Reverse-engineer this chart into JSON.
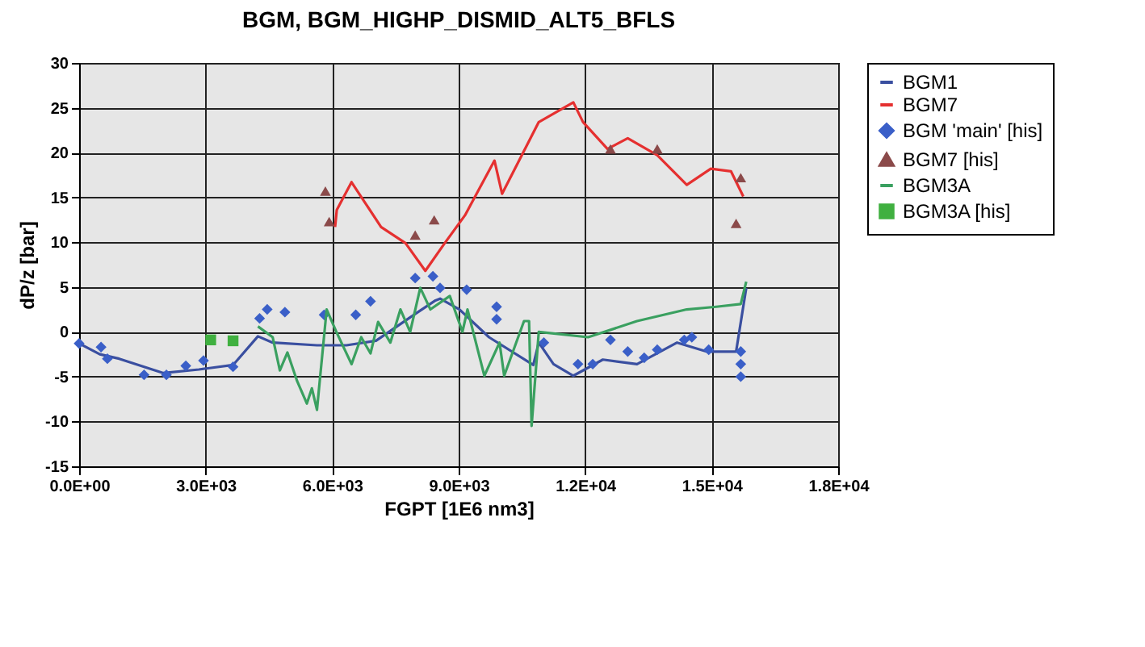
{
  "chart_data": {
    "type": "line",
    "title": "BGM, BGM_HIGHP_DISMID_ALT5_BFLS",
    "xlabel": "FGPT [1E6 nm3]",
    "ylabel": "dP/z [bar]",
    "xlim": [
      0,
      18000
    ],
    "xticks": [
      {
        "value": 0,
        "label": "0.0E+00"
      },
      {
        "value": 3000,
        "label": "3.0E+03"
      },
      {
        "value": 6000,
        "label": "6.0E+03"
      },
      {
        "value": 9000,
        "label": "9.0E+03"
      },
      {
        "value": 12000,
        "label": "1.2E+04"
      },
      {
        "value": 15000,
        "label": "1.5E+04"
      },
      {
        "value": 18000,
        "label": "1.8E+04"
      }
    ],
    "ylim": [
      -15,
      30
    ],
    "yticks": [
      -15,
      -10,
      -5,
      0,
      5,
      10,
      15,
      20,
      25,
      30
    ],
    "grid": true,
    "legend": "right",
    "series": [
      {
        "name": "BGM1",
        "marker": "none",
        "color": "#3a4fa0",
        "x": [
          0,
          490,
          950,
          2000,
          2840,
          3650,
          4240,
          4590,
          5640,
          6340,
          7040,
          7970,
          8450,
          8560,
          9020,
          9720,
          10770,
          10900,
          11250,
          11720,
          12420,
          13230,
          14180,
          14880,
          15580,
          15820
        ],
        "values": [
          -1.3,
          -2.5,
          -3,
          -4.6,
          -4.2,
          -3.7,
          -0.5,
          -1.2,
          -1.5,
          -1.5,
          -1,
          2,
          3.5,
          3.7,
          2.5,
          -0.6,
          -3.7,
          -1.2,
          -3.6,
          -4.9,
          -3.1,
          -3.6,
          -1.2,
          -2.2,
          -2.2,
          4.9
        ]
      },
      {
        "name": "BGM7",
        "marker": "none",
        "color": "#e53030",
        "x": [
          6070,
          6110,
          6460,
          6810,
          7160,
          7740,
          8210,
          8670,
          9150,
          9850,
          10030,
          10900,
          11720,
          11950,
          12530,
          13010,
          13710,
          14410,
          14980,
          15460,
          15750
        ],
        "values": [
          11.7,
          13.6,
          16.7,
          14.2,
          11.7,
          9.9,
          6.8,
          9.9,
          13,
          19.1,
          15.4,
          23.4,
          25.6,
          23.4,
          20.4,
          21.6,
          19.7,
          16.4,
          18.2,
          17.9,
          15.1
        ]
      },
      {
        "name": "BGM 'main' [his]",
        "type": "scatter",
        "marker": "diamond",
        "color": "#3a5fc8",
        "x": [
          0,
          520,
          670,
          1540,
          2070,
          2530,
          2950,
          3650,
          4280,
          4460,
          4880,
          5810,
          6560,
          6910,
          7970,
          8390,
          8560,
          9190,
          9900,
          9900,
          11020,
          11830,
          12180,
          12600,
          13010,
          13400,
          13710,
          14350,
          14530,
          14930,
          15690,
          15690,
          15690
        ],
        "values": [
          -1.3,
          -1.7,
          -3,
          -4.8,
          -4.8,
          -3.8,
          -3.2,
          -3.9,
          1.5,
          2.5,
          2.2,
          1.9,
          1.9,
          3.4,
          6,
          6.2,
          4.9,
          4.7,
          2.8,
          1.4,
          -1.2,
          -3.6,
          -3.6,
          -0.9,
          -2.2,
          -2.9,
          -2,
          -0.9,
          -0.6,
          -2,
          -2.2,
          -3.6,
          -5
        ]
      },
      {
        "name": "BGM7 [his]",
        "type": "scatter",
        "marker": "triangle",
        "color": "#8b4a4a",
        "x": [
          5840,
          5930,
          7970,
          8420,
          12600,
          13710,
          15690,
          15580
        ],
        "values": [
          15.7,
          12.3,
          10.8,
          12.5,
          20.4,
          20.4,
          17.2,
          12.1
        ]
      },
      {
        "name": "BGM3A",
        "marker": "none",
        "color": "#3aa060",
        "x": [
          4240,
          4590,
          4760,
          4940,
          5170,
          5400,
          5520,
          5640,
          5870,
          6100,
          6460,
          6690,
          6910,
          7090,
          7380,
          7620,
          7850,
          8090,
          8330,
          8790,
          9090,
          9210,
          9610,
          9970,
          10080,
          10550,
          10670,
          10730,
          10900,
          12070,
          13230,
          14410,
          15110,
          15690,
          15820
        ],
        "values": [
          0.6,
          -0.6,
          -4.3,
          -2.3,
          -5.5,
          -8,
          -6.3,
          -8.7,
          2.5,
          0,
          -3.6,
          -0.6,
          -2.4,
          1.1,
          -1.2,
          2.5,
          0,
          4.9,
          2.5,
          4,
          0,
          2.5,
          -4.9,
          -1.2,
          -4.9,
          1.2,
          1.2,
          -10.5,
          0,
          -0.6,
          1.2,
          2.5,
          2.8,
          3.1,
          5.6
        ]
      },
      {
        "name": "BGM3A [his]",
        "type": "scatter",
        "marker": "square",
        "color": "#40b040",
        "x": [
          3120,
          3650
        ],
        "values": [
          -0.9,
          -1
        ]
      }
    ]
  }
}
